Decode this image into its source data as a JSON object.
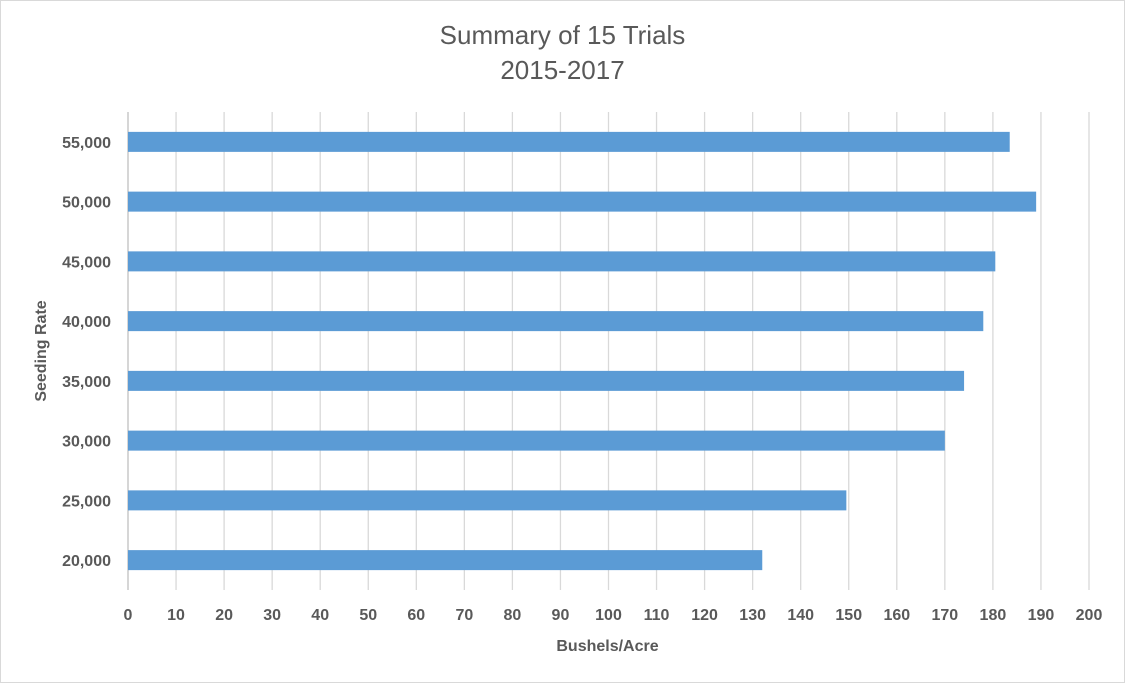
{
  "chart_data": {
    "type": "bar",
    "orientation": "horizontal",
    "title": "Summary of 15 Trials",
    "subtitle": "2015-2017",
    "xlabel": "Bushels/Acre",
    "ylabel": "Seeding Rate",
    "categories": [
      "20,000",
      "25,000",
      "30,000",
      "35,000",
      "40,000",
      "45,000",
      "50,000",
      "55,000"
    ],
    "values": [
      132,
      149.5,
      170,
      174,
      178,
      180.5,
      189,
      183.5
    ],
    "xlim": [
      0,
      200
    ],
    "xticks": [
      "0",
      "10",
      "20",
      "30",
      "40",
      "50",
      "60",
      "70",
      "80",
      "90",
      "100",
      "110",
      "120",
      "130",
      "140",
      "150",
      "160",
      "170",
      "180",
      "190",
      "200"
    ],
    "grid": "vertical major gridlines",
    "legend": "none",
    "bar_color": "#5b9bd5"
  }
}
